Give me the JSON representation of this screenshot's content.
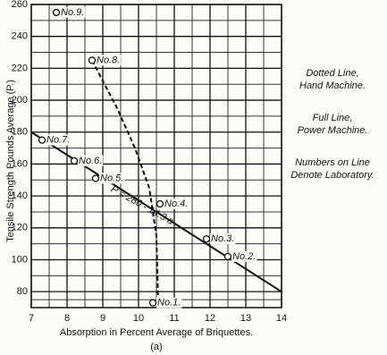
{
  "chart_data": {
    "type": "scatter",
    "x_label": "Absorption in Percent Average of Briquettes.",
    "x_sublabel": "(a)",
    "y_label": "Tensile Strength Pounds Average (P.)",
    "xlim": [
      7,
      14
    ],
    "ylim": [
      70,
      260
    ],
    "xticks": [
      7,
      8,
      9,
      10,
      11,
      12,
      13,
      14
    ],
    "yticks": [
      80,
      100,
      120,
      140,
      160,
      180,
      200,
      220,
      240,
      260
    ],
    "grid": true,
    "color": "#111111",
    "points": [
      {
        "label": "No.1.",
        "x": 10.4,
        "y": 73
      },
      {
        "label": "No.2.",
        "x": 12.5,
        "y": 102
      },
      {
        "label": "No.3.",
        "x": 11.9,
        "y": 113
      },
      {
        "label": "No.4.",
        "x": 10.6,
        "y": 135
      },
      {
        "label": "No.5.",
        "x": 8.8,
        "y": 151
      },
      {
        "label": "No.6.",
        "x": 8.2,
        "y": 162
      },
      {
        "label": "No.7.",
        "x": 7.3,
        "y": 175
      },
      {
        "label": "No.8.",
        "x": 8.7,
        "y": 225
      },
      {
        "label": "No.9.",
        "x": 7.7,
        "y": 255
      }
    ],
    "lines": [
      {
        "style": "solid",
        "x": [
          7,
          14
        ],
        "y": [
          180,
          80
        ]
      },
      {
        "style": "dotted",
        "x": [
          8.7,
          9.4,
          9.9,
          10.3,
          10.5,
          10.55
        ],
        "y": [
          225,
          195,
          170,
          145,
          115,
          73
        ]
      }
    ],
    "equation": "P = 280 - 14.3 a",
    "notes": [
      [
        "Dotted Line,",
        "Hand Machine."
      ],
      [
        "Full Line,",
        "Power Machine."
      ],
      [
        "Numbers on Line",
        "Denote Laboratory."
      ]
    ]
  }
}
